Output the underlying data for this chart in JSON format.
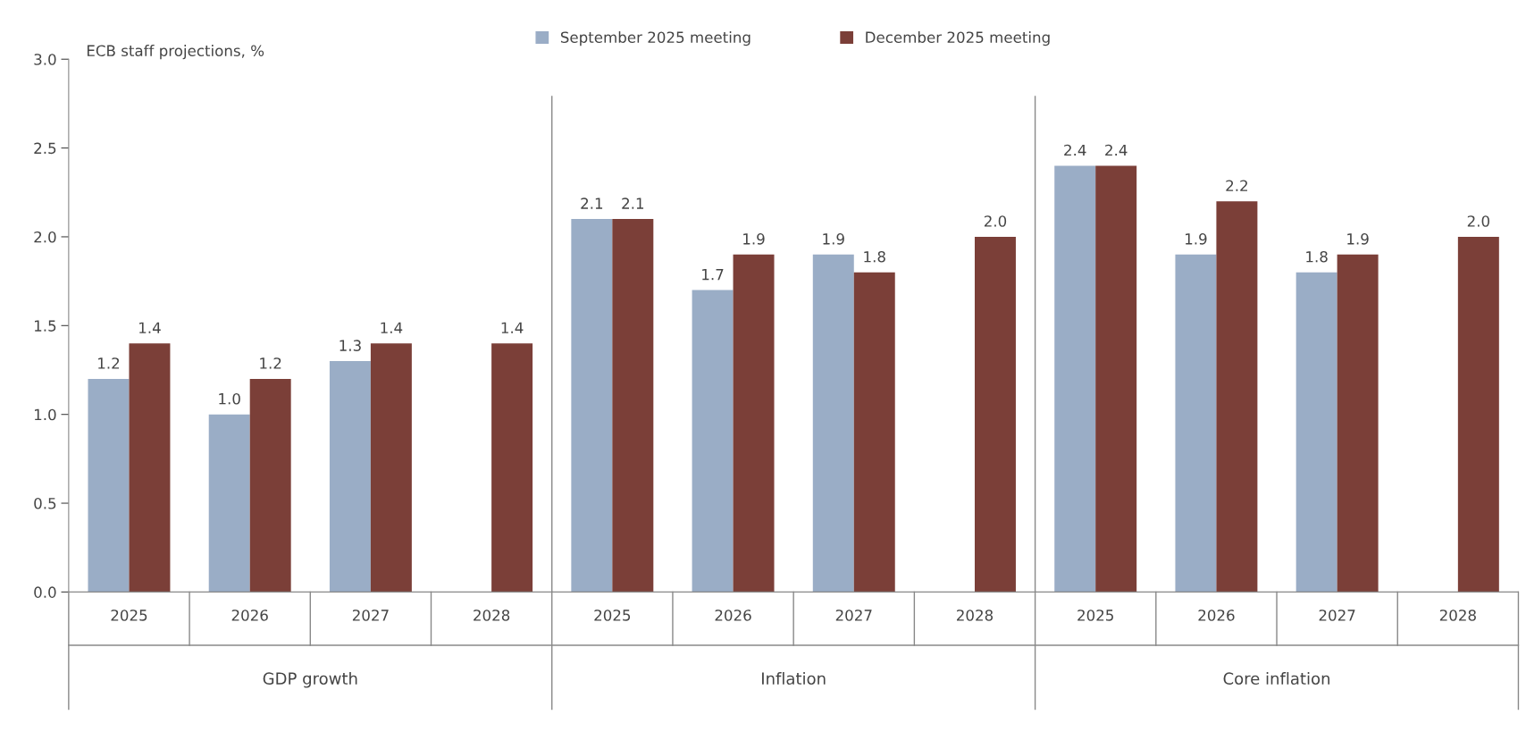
{
  "chart_data": {
    "type": "bar",
    "ylabel": "ECB staff projections, %",
    "categories": [
      "2025",
      "2026",
      "2027",
      "2028",
      "2025",
      "2026",
      "2027",
      "2028",
      "2025",
      "2026",
      "2027",
      "2028"
    ],
    "series": [
      {
        "name": "September 2025 meeting",
        "color": "#9aadc6",
        "values": [
          1.2,
          1.0,
          1.3,
          null,
          2.1,
          1.7,
          1.9,
          null,
          2.4,
          1.9,
          1.8,
          null
        ],
        "value_labels": [
          "1.2",
          "1.0",
          "1.3",
          null,
          "2.1",
          "1.7",
          "1.9",
          null,
          "2.4",
          "1.9",
          "1.8",
          null
        ]
      },
      {
        "name": "December 2025 meeting",
        "color": "#7b3f38",
        "values": [
          1.4,
          1.2,
          1.4,
          1.4,
          2.1,
          1.9,
          1.8,
          2.0,
          2.4,
          2.2,
          1.9,
          2.0
        ],
        "value_labels": [
          "1.4",
          "1.2",
          "1.4",
          "1.4",
          "2.1",
          "1.9",
          "1.8",
          "2.0",
          "2.4",
          "2.2",
          "1.9",
          "2.0"
        ]
      }
    ],
    "annotations": [
      "GDP growth",
      "Inflation",
      "Core inflation"
    ],
    "ylim": [
      0,
      3
    ],
    "yticks": [
      {
        "value": 0,
        "label": "0.0"
      },
      {
        "value": 0.5,
        "label": "0.5"
      },
      {
        "value": 1,
        "label": "1.0"
      },
      {
        "value": 1.5,
        "label": "1.5"
      },
      {
        "value": 2,
        "label": "2.0"
      },
      {
        "value": 2.5,
        "label": "2.5"
      },
      {
        "value": 3,
        "label": "3.0"
      }
    ],
    "legend": "top",
    "grid": false
  }
}
